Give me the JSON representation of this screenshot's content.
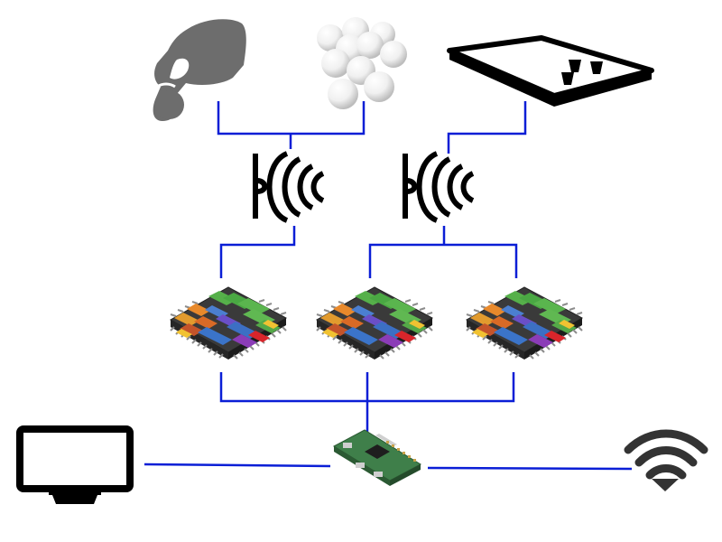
{
  "diagram": {
    "wire_color": "#0a1ed6",
    "top_row": {
      "hand": {
        "icon": "hand-holding-ball-icon",
        "color": "#6d6d6d"
      },
      "balls": {
        "icon": "ping-pong-balls-icon",
        "color": "#eeeeee"
      },
      "table": {
        "icon": "beer-pong-table-icon",
        "color": "#000000"
      }
    },
    "sensors": [
      {
        "icon": "ultrasonic-sensor-icon",
        "color": "#000000"
      },
      {
        "icon": "ultrasonic-sensor-icon",
        "color": "#000000"
      }
    ],
    "chips": [
      {
        "icon": "microcontroller-chip-icon"
      },
      {
        "icon": "microcontroller-chip-icon"
      },
      {
        "icon": "microcontroller-chip-icon"
      }
    ],
    "bottom_row": {
      "monitor": {
        "icon": "monitor-icon",
        "color": "#000000"
      },
      "board": {
        "icon": "raspberry-pi-zero-board-icon",
        "color": "#3f7f4a"
      },
      "wifi": {
        "icon": "wifi-icon",
        "color": "#333333"
      }
    }
  }
}
